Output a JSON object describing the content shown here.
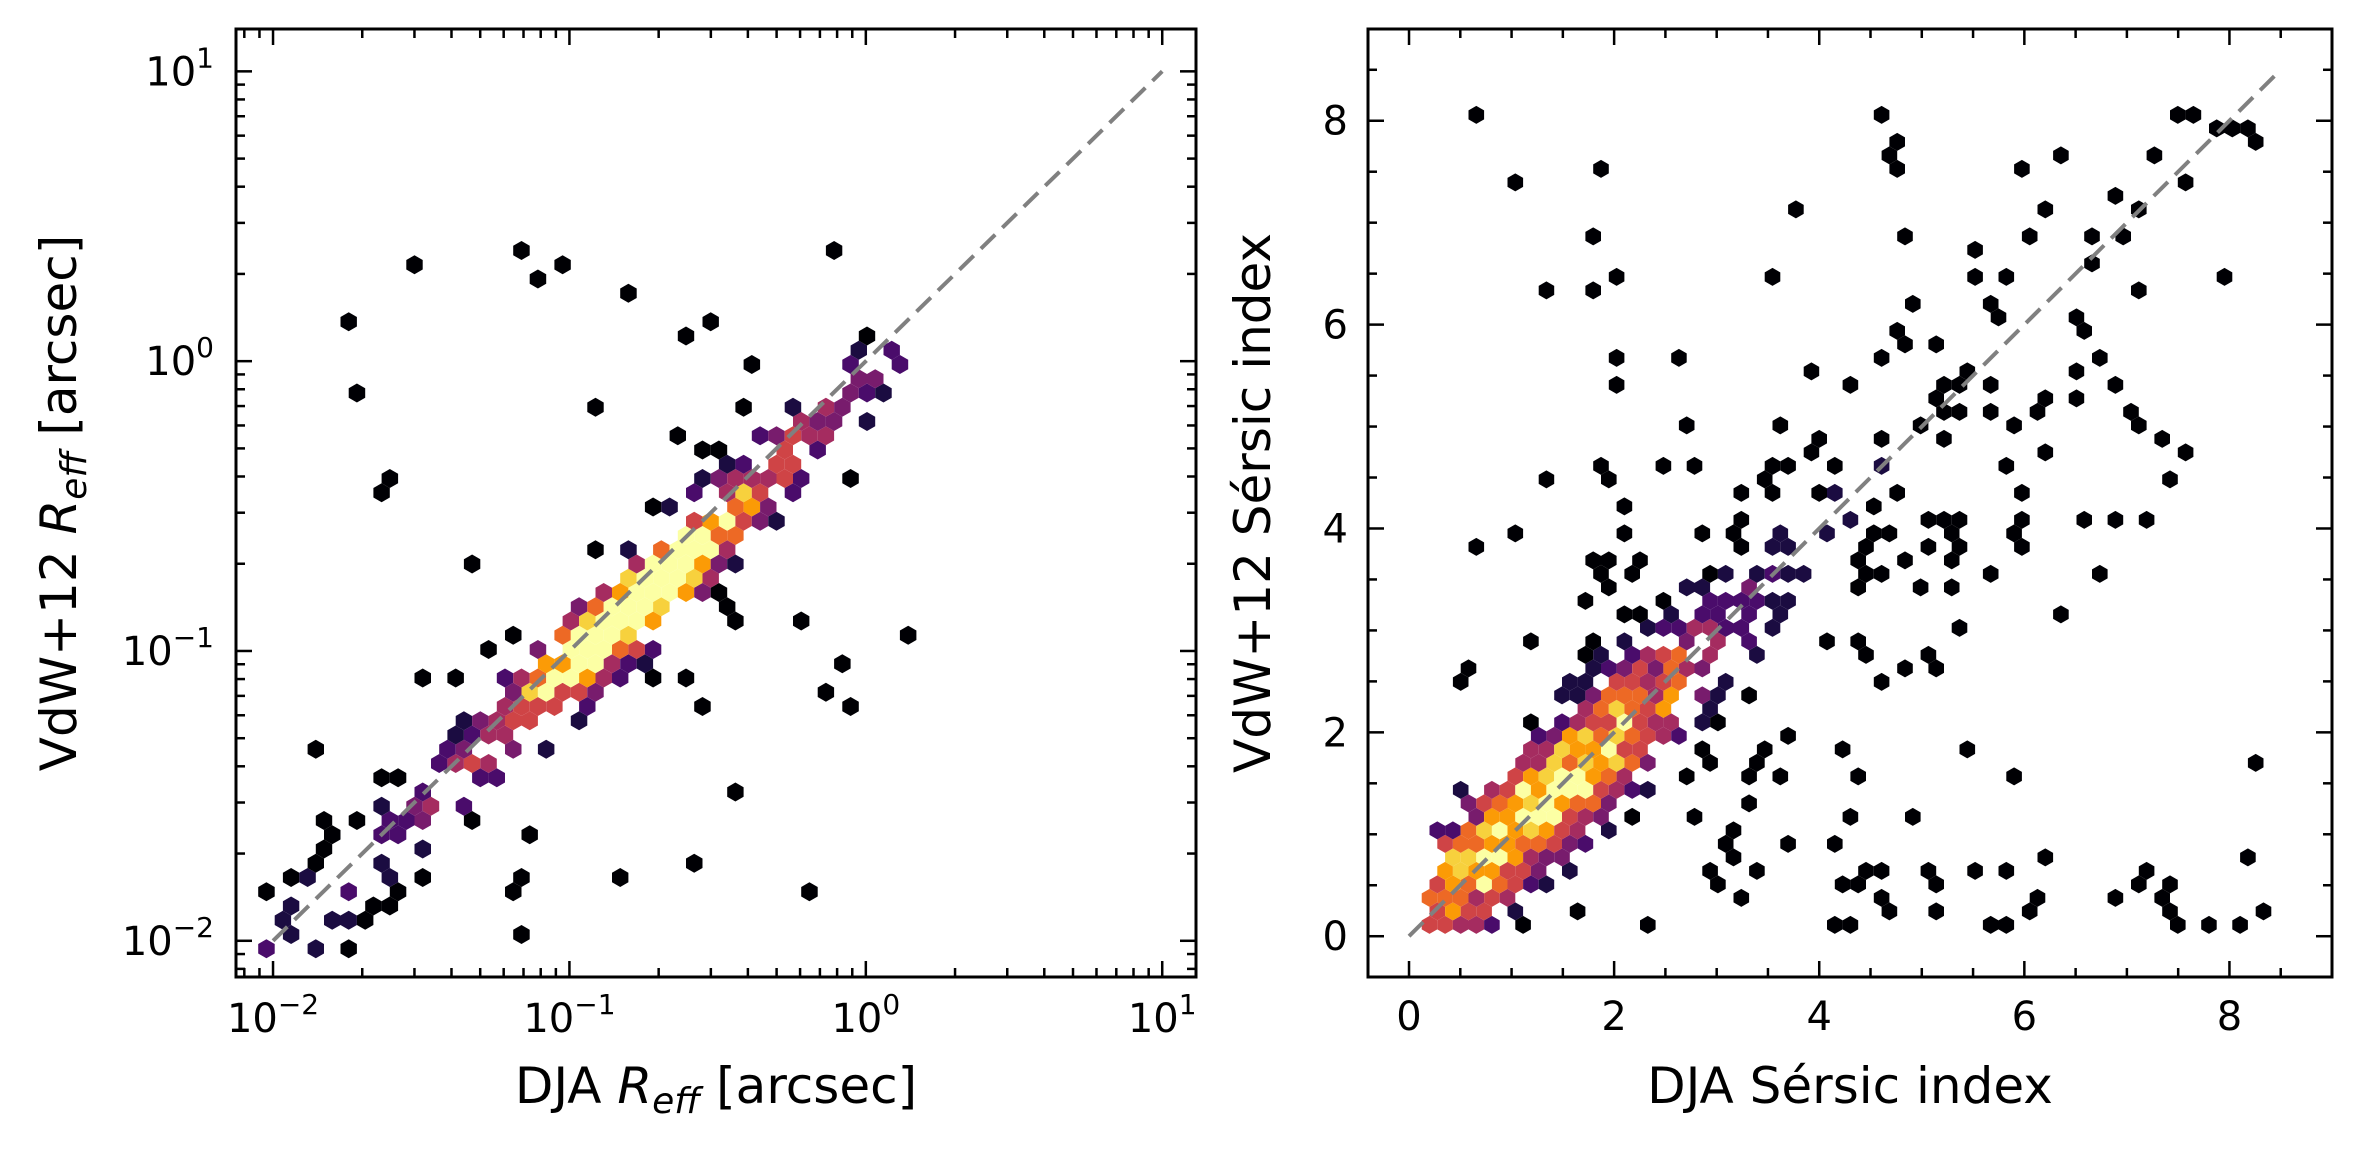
{
  "colors": {
    "diagonal": "#808080",
    "axes": "#000000",
    "background": "#ffffff",
    "colormap": [
      "#000004",
      "#1b0c41",
      "#4a0c6b",
      "#781c6d",
      "#a52c60",
      "#cf4446",
      "#ed6925",
      "#fb9b06",
      "#f7d13d",
      "#fcffa4"
    ]
  },
  "chart_data": [
    {
      "type": "hexbin",
      "panel": "left",
      "xscale": "log",
      "yscale": "log",
      "xlabel_prefix": "DJA ",
      "xlabel_italic": "R",
      "xlabel_sub": "eff",
      "xlabel_suffix": " [arcsec]",
      "ylabel_prefix": "VdW+12 ",
      "ylabel_italic": "R",
      "ylabel_sub": "eff",
      "ylabel_suffix": " [arcsec]",
      "xlim": [
        0.0075,
        13
      ],
      "ylim": [
        0.0075,
        14
      ],
      "major_ticks": [
        0.01,
        0.1,
        1,
        10
      ],
      "tick_labels": [
        {
          "base": "10",
          "exp": "−2"
        },
        {
          "base": "10",
          "exp": "−1"
        },
        {
          "base": "10",
          "exp": "0"
        },
        {
          "base": "10",
          "exp": "1"
        }
      ],
      "reference_line": {
        "style": "dashed",
        "from": [
          0.01,
          0.01
        ],
        "to": [
          10,
          10
        ],
        "label": "one-to-one"
      },
      "distribution": {
        "description": "tight log-normal correlation along the 1:1 line",
        "peak_x": 0.17,
        "peak_y": 0.15,
        "range": [
          0.012,
          2.0
        ],
        "outliers_up_to": 2.3
      }
    },
    {
      "type": "hexbin",
      "panel": "right",
      "xscale": "linear",
      "yscale": "linear",
      "xlabel": "DJA Sérsic index",
      "ylabel": "VdW+12 Sérsic index",
      "xlim": [
        -0.4,
        9.0
      ],
      "ylim": [
        -0.4,
        8.9
      ],
      "major_ticks": [
        0,
        2,
        4,
        6,
        8
      ],
      "tick_labels": [
        "0",
        "2",
        "4",
        "6",
        "8"
      ],
      "minor_step": 0.5,
      "reference_line": {
        "style": "dashed",
        "from": [
          0,
          0
        ],
        "to": [
          8.5,
          8.5
        ],
        "label": "one-to-one"
      },
      "distribution": {
        "description": "correlated with large scatter; densest near n~1-2, sparse up to n~8",
        "peak_x": 1.2,
        "peak_y": 1.3,
        "range": [
          0.15,
          8.3
        ]
      }
    }
  ]
}
